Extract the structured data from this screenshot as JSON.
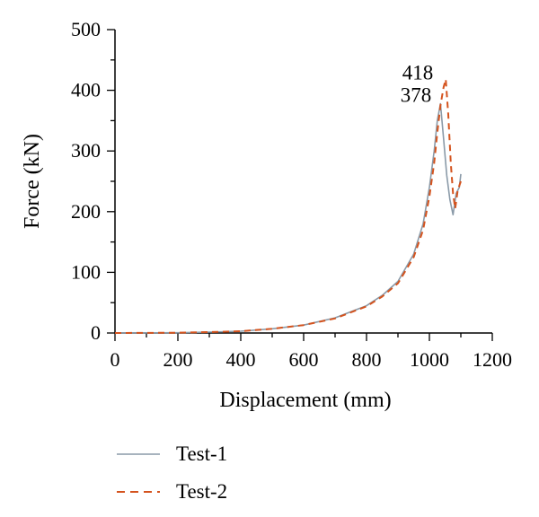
{
  "chart_data": {
    "type": "line",
    "title": "",
    "xlabel": "Displacement (mm)",
    "ylabel": "Force (kN)",
    "xlim": [
      0,
      1200
    ],
    "ylim": [
      0,
      500
    ],
    "xticks": [
      0,
      200,
      400,
      600,
      800,
      1000,
      1200
    ],
    "yticks": [
      0,
      100,
      200,
      300,
      400,
      500
    ],
    "grid": false,
    "legend": "bottom-left, below plot",
    "series": [
      {
        "name": "Test-1",
        "color": "#8a9aa8",
        "style": "solid",
        "points": [
          [
            0,
            0
          ],
          [
            200,
            0.5
          ],
          [
            300,
            1.5
          ],
          [
            400,
            3
          ],
          [
            500,
            7
          ],
          [
            600,
            13
          ],
          [
            700,
            25
          ],
          [
            800,
            45
          ],
          [
            850,
            62
          ],
          [
            900,
            85
          ],
          [
            950,
            130
          ],
          [
            980,
            180
          ],
          [
            1000,
            240
          ],
          [
            1015,
            300
          ],
          [
            1025,
            350
          ],
          [
            1035,
            378
          ],
          [
            1045,
            320
          ],
          [
            1055,
            260
          ],
          [
            1065,
            220
          ],
          [
            1075,
            195
          ],
          [
            1085,
            230
          ],
          [
            1095,
            240
          ],
          [
            1100,
            262
          ]
        ]
      },
      {
        "name": "Test-2",
        "color": "#d4531e",
        "style": "dashed",
        "points": [
          [
            0,
            0
          ],
          [
            200,
            0.5
          ],
          [
            300,
            1.5
          ],
          [
            400,
            3
          ],
          [
            500,
            7
          ],
          [
            600,
            13
          ],
          [
            700,
            24
          ],
          [
            800,
            44
          ],
          [
            850,
            60
          ],
          [
            900,
            82
          ],
          [
            950,
            125
          ],
          [
            980,
            170
          ],
          [
            1000,
            225
          ],
          [
            1015,
            280
          ],
          [
            1025,
            330
          ],
          [
            1035,
            375
          ],
          [
            1045,
            405
          ],
          [
            1052,
            418
          ],
          [
            1060,
            360
          ],
          [
            1068,
            280
          ],
          [
            1075,
            230
          ],
          [
            1082,
            205
          ],
          [
            1090,
            235
          ],
          [
            1100,
            250
          ]
        ]
      }
    ],
    "annotations": [
      {
        "text": "418",
        "x": 1052,
        "y": 418
      },
      {
        "text": "378",
        "x": 1035,
        "y": 378
      }
    ]
  }
}
